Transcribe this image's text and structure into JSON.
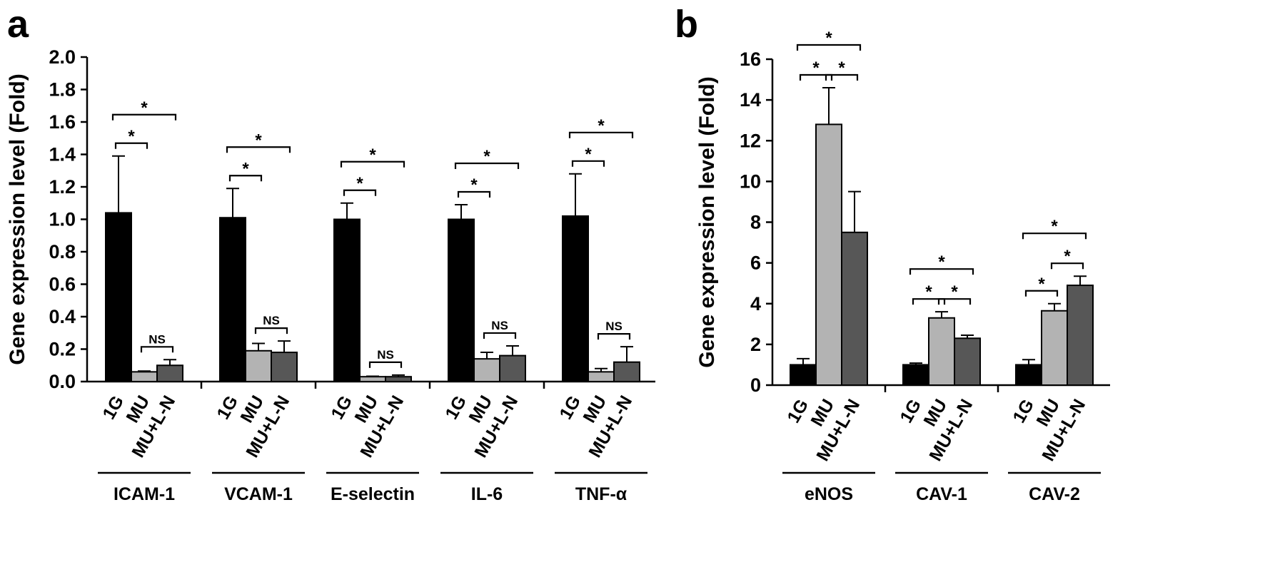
{
  "panels": [
    {
      "label": "a"
    },
    {
      "label": "b"
    }
  ],
  "colors": {
    "1G": "#000000",
    "MU": "#b3b3b3",
    "MU+L-N": "#575757",
    "axis": "#000000"
  },
  "chart_data": [
    {
      "type": "bar",
      "panel": "a",
      "title": "",
      "ylabel": "Gene expression level (Fold)",
      "xlabel": "",
      "ylim": [
        0,
        2.0
      ],
      "yticks": [
        "0.0",
        "0.2",
        "0.4",
        "0.6",
        "0.8",
        "1.0",
        "1.2",
        "1.4",
        "1.6",
        "1.8",
        "2.0"
      ],
      "grid": false,
      "legend": "none",
      "categories": [
        "1G",
        "MU",
        "MU+L-N"
      ],
      "groups": [
        {
          "name": "ICAM-1",
          "values": [
            1.04,
            0.06,
            0.1
          ],
          "errors": [
            0.35,
            0.005,
            0.035
          ],
          "sig": [
            {
              "from": 0,
              "to": 1,
              "label": "*"
            },
            {
              "from": 1,
              "to": 2,
              "label": "NS"
            },
            {
              "from": 0,
              "to": 2,
              "label": "*"
            }
          ]
        },
        {
          "name": "VCAM-1",
          "values": [
            1.01,
            0.19,
            0.18
          ],
          "errors": [
            0.18,
            0.045,
            0.07
          ],
          "sig": [
            {
              "from": 0,
              "to": 1,
              "label": "*"
            },
            {
              "from": 1,
              "to": 2,
              "label": "NS"
            },
            {
              "from": 0,
              "to": 2,
              "label": "*"
            }
          ]
        },
        {
          "name": "E-selectin",
          "values": [
            1.0,
            0.03,
            0.03
          ],
          "errors": [
            0.1,
            0.003,
            0.01
          ],
          "sig": [
            {
              "from": 0,
              "to": 1,
              "label": "*"
            },
            {
              "from": 1,
              "to": 2,
              "label": "NS"
            },
            {
              "from": 0,
              "to": 2,
              "label": "*"
            }
          ]
        },
        {
          "name": "IL-6",
          "values": [
            1.0,
            0.14,
            0.16
          ],
          "errors": [
            0.09,
            0.04,
            0.06
          ],
          "sig": [
            {
              "from": 0,
              "to": 1,
              "label": "*"
            },
            {
              "from": 1,
              "to": 2,
              "label": "NS"
            },
            {
              "from": 0,
              "to": 2,
              "label": "*"
            }
          ]
        },
        {
          "name": "TNF-α",
          "values": [
            1.02,
            0.06,
            0.12
          ],
          "errors": [
            0.26,
            0.02,
            0.095
          ],
          "sig": [
            {
              "from": 0,
              "to": 1,
              "label": "*"
            },
            {
              "from": 1,
              "to": 2,
              "label": "NS"
            },
            {
              "from": 0,
              "to": 2,
              "label": "*"
            }
          ]
        }
      ]
    },
    {
      "type": "bar",
      "panel": "b",
      "title": "",
      "ylabel": "Gene expression level (Fold)",
      "xlabel": "",
      "ylim": [
        0,
        16
      ],
      "yticks": [
        "0",
        "2",
        "4",
        "6",
        "8",
        "10",
        "12",
        "14",
        "16"
      ],
      "grid": false,
      "legend": "none",
      "categories": [
        "1G",
        "MU",
        "MU+L-N"
      ],
      "groups": [
        {
          "name": "eNOS",
          "values": [
            1.0,
            12.8,
            7.5
          ],
          "errors": [
            0.3,
            1.8,
            2.0
          ],
          "sig": [
            {
              "from": 0,
              "to": 1,
              "label": "*"
            },
            {
              "from": 1,
              "to": 2,
              "label": "*"
            },
            {
              "from": 0,
              "to": 2,
              "label": "*"
            }
          ]
        },
        {
          "name": "CAV-1",
          "values": [
            1.0,
            3.3,
            2.3
          ],
          "errors": [
            0.08,
            0.3,
            0.15
          ],
          "sig": [
            {
              "from": 0,
              "to": 1,
              "label": "*"
            },
            {
              "from": 1,
              "to": 2,
              "label": "*"
            },
            {
              "from": 0,
              "to": 2,
              "label": "*"
            }
          ]
        },
        {
          "name": "CAV-2",
          "values": [
            1.0,
            3.65,
            4.9
          ],
          "errors": [
            0.25,
            0.35,
            0.45
          ],
          "sig": [
            {
              "from": 0,
              "to": 1,
              "label": "*"
            },
            {
              "from": 1,
              "to": 2,
              "label": "*"
            },
            {
              "from": 0,
              "to": 2,
              "label": "*"
            }
          ]
        }
      ]
    }
  ]
}
